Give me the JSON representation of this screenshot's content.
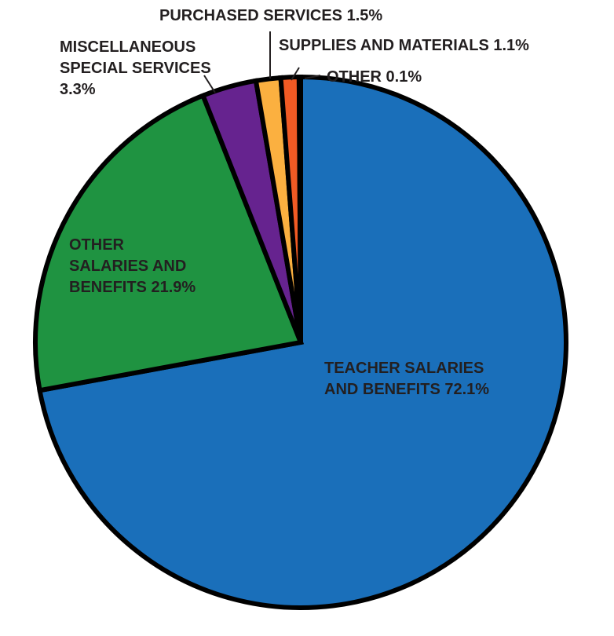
{
  "chart_data": {
    "type": "pie",
    "start_angle_deg": 0,
    "direction": "clockwise",
    "slices": [
      {
        "label_lines": [
          "TEACHER SALARIES",
          "AND BENEFITS 72.1%"
        ],
        "value": 72.1,
        "color": "#1a6fba"
      },
      {
        "label_lines": [
          "OTHER",
          "SALARIES AND",
          "BENEFITS 21.9%"
        ],
        "value": 21.9,
        "color": "#1f9341"
      },
      {
        "label_lines": [
          "MISCELLANEOUS",
          "SPECIAL SERVICES",
          "3.3%"
        ],
        "value": 3.3,
        "color": "#66238f"
      },
      {
        "label_lines": [
          "PURCHASED SERVICES 1.5%"
        ],
        "value": 1.5,
        "color": "#fbb040"
      },
      {
        "label_lines": [
          "SUPPLIES AND MATERIALS 1.1%"
        ],
        "value": 1.1,
        "color": "#f15a24"
      },
      {
        "label_lines": [
          "OTHER 0.1%"
        ],
        "value": 0.1,
        "color": "#ee4036"
      }
    ],
    "outline_color": "#000000",
    "label_color": "#231f20"
  }
}
